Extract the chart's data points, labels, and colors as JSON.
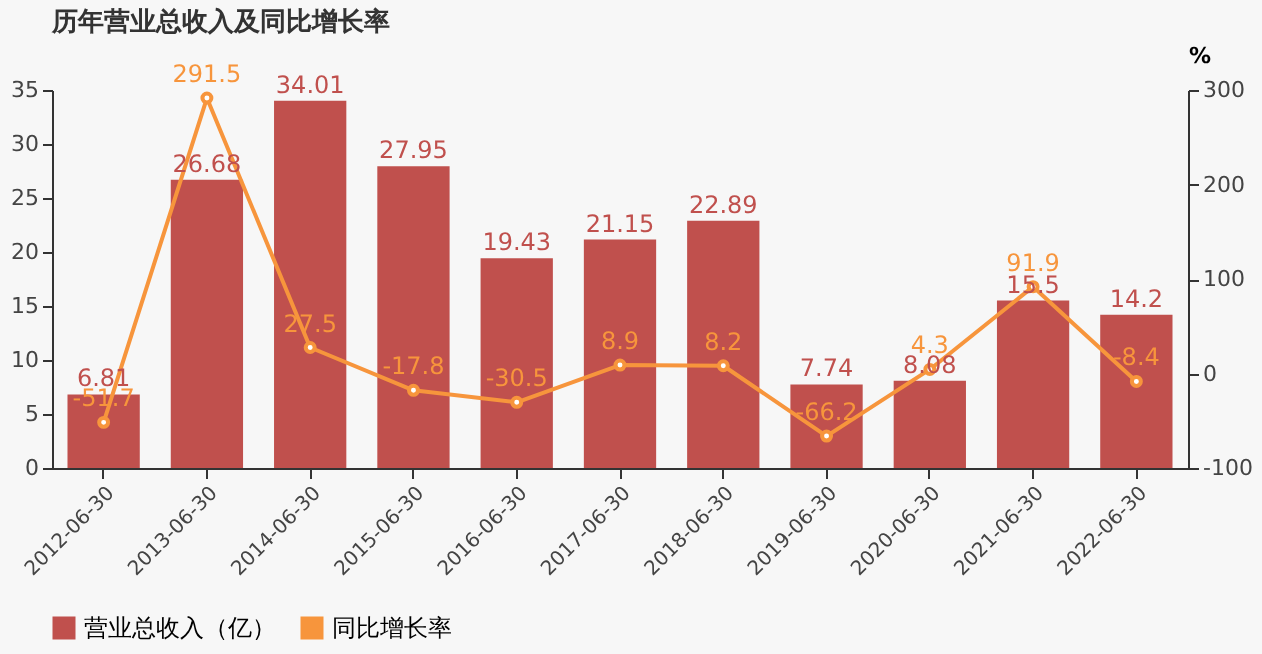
{
  "chart_data": {
    "type": "bar",
    "title": "历年营业总收入及同比增长率",
    "categories": [
      "2012-06-30",
      "2013-06-30",
      "2014-06-30",
      "2015-06-30",
      "2016-06-30",
      "2017-06-30",
      "2018-06-30",
      "2019-06-30",
      "2020-06-30",
      "2021-06-30",
      "2022-06-30"
    ],
    "series": [
      {
        "name": "营业总收入（亿）",
        "color": "#c0504d",
        "values": [
          6.81,
          26.68,
          34.01,
          27.95,
          19.43,
          21.15,
          22.89,
          7.74,
          8.08,
          15.5,
          14.2
        ]
      },
      {
        "name": "同比增长率",
        "type": "line",
        "axis": "y2",
        "color": "#f7953c",
        "values": [
          -51.7,
          291.5,
          27.5,
          -17.8,
          -30.5,
          8.9,
          8.2,
          -66.2,
          4.3,
          91.9,
          -8.4
        ]
      }
    ],
    "ylim": [
      0,
      35
    ],
    "yticks": [
      0,
      5,
      10,
      15,
      20,
      25,
      30,
      35
    ],
    "y2lim": [
      -100,
      300
    ],
    "y2ticks": [
      -100,
      0,
      100,
      200,
      300
    ],
    "y2label": "%",
    "data_labels": true,
    "legend": "bottom",
    "marker": "circle",
    "grid": false
  }
}
